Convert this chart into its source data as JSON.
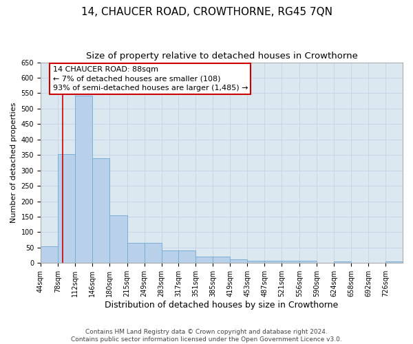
{
  "title": "14, CHAUCER ROAD, CROWTHORNE, RG45 7QN",
  "subtitle": "Size of property relative to detached houses in Crowthorne",
  "xlabel": "Distribution of detached houses by size in Crowthorne",
  "ylabel": "Number of detached properties",
  "bin_labels": [
    "44sqm",
    "78sqm",
    "112sqm",
    "146sqm",
    "180sqm",
    "215sqm",
    "249sqm",
    "283sqm",
    "317sqm",
    "351sqm",
    "385sqm",
    "419sqm",
    "453sqm",
    "487sqm",
    "521sqm",
    "556sqm",
    "590sqm",
    "624sqm",
    "658sqm",
    "692sqm",
    "726sqm"
  ],
  "bin_edges": [
    44,
    78,
    112,
    146,
    180,
    215,
    249,
    283,
    317,
    351,
    385,
    419,
    453,
    487,
    521,
    556,
    590,
    624,
    658,
    692,
    726,
    760
  ],
  "bar_heights": [
    55,
    353,
    543,
    340,
    155,
    65,
    65,
    40,
    40,
    20,
    20,
    12,
    8,
    8,
    8,
    8,
    0,
    5,
    0,
    0,
    5
  ],
  "bar_color": "#b8d0ea",
  "bar_edgecolor": "#7aafd4",
  "bar_linewidth": 0.7,
  "red_line_x": 88,
  "red_line_color": "#cc0000",
  "annotation_text": "14 CHAUCER ROAD: 88sqm\n← 7% of detached houses are smaller (108)\n93% of semi-detached houses are larger (1,485) →",
  "annotation_box_edgecolor": "#cc0000",
  "annotation_box_facecolor": "white",
  "ylim": [
    0,
    650
  ],
  "yticks": [
    0,
    50,
    100,
    150,
    200,
    250,
    300,
    350,
    400,
    450,
    500,
    550,
    600,
    650
  ],
  "grid_color": "#c8d4e8",
  "background_color": "#dce8f0",
  "footer_text": "Contains HM Land Registry data © Crown copyright and database right 2024.\nContains public sector information licensed under the Open Government Licence v3.0.",
  "title_fontsize": 11,
  "subtitle_fontsize": 9.5,
  "xlabel_fontsize": 9,
  "ylabel_fontsize": 8,
  "tick_fontsize": 7,
  "annotation_fontsize": 8,
  "footer_fontsize": 6.5
}
